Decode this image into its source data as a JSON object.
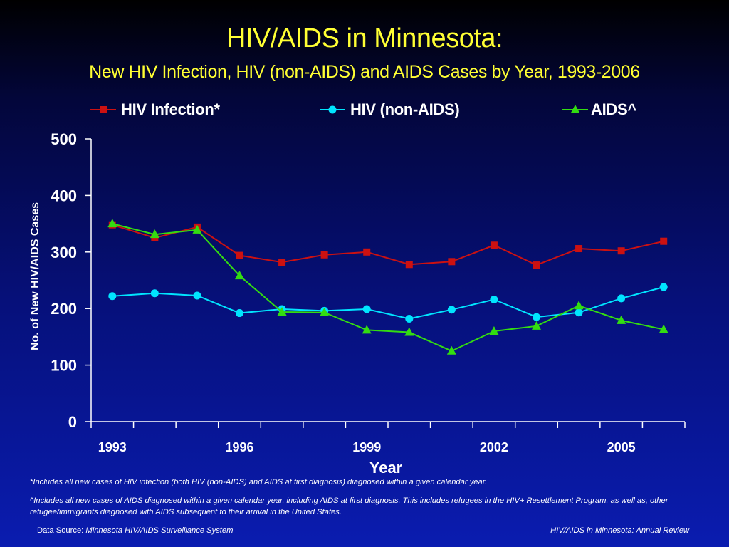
{
  "header": {
    "title": "HIV/AIDS in Minnesota:",
    "subtitle": "New HIV Infection, HIV (non-AIDS) and AIDS Cases by Year, 1993-2006"
  },
  "chart_data": {
    "type": "line",
    "xlabel": "Year",
    "ylabel": "No. of New HIV/AIDS Cases",
    "ylim": [
      0,
      500
    ],
    "yticks": [
      0,
      100,
      200,
      300,
      400,
      500
    ],
    "x": [
      1993,
      1994,
      1995,
      1996,
      1997,
      1998,
      1999,
      2000,
      2001,
      2002,
      2003,
      2004,
      2005,
      2006
    ],
    "xtick_labels": [
      "1993",
      "1996",
      "1999",
      "2002",
      "2005"
    ],
    "legend_position": "top",
    "series": [
      {
        "name": "HIV Infection*",
        "color": "#cc1111",
        "marker": "square",
        "values": [
          348,
          325,
          344,
          294,
          282,
          295,
          300,
          278,
          283,
          312,
          277,
          306,
          302,
          319
        ]
      },
      {
        "name": "HIV (non-AIDS)",
        "color": "#00e5ff",
        "marker": "circle",
        "values": [
          222,
          227,
          223,
          192,
          199,
          196,
          199,
          182,
          198,
          216,
          185,
          193,
          218,
          238
        ]
      },
      {
        "name": "AIDS^",
        "color": "#33dd11",
        "marker": "triangle",
        "values": [
          350,
          331,
          339,
          258,
          194,
          193,
          162,
          158,
          125,
          160,
          169,
          205,
          179,
          163
        ]
      }
    ]
  },
  "notes": {
    "note1": "*Includes all new cases of HIV infection (both HIV (non-AIDS) and AIDS at first diagnosis) diagnosed within a given calendar year.",
    "note2": "^Includes all new cases of AIDS diagnosed within a given calendar year, including AIDS at first diagnosis. This includes refugees in the HIV+ Resettlement Program, as well as, other refugee/immigrants  diagnosed with AIDS subsequent to their arrival in the United States."
  },
  "footer": {
    "source_label": "Data Source: ",
    "source_name": "Minnesota HIV/AIDS Surveillance System",
    "report": "HIV/AIDS in Minnesota: Annual Review"
  }
}
